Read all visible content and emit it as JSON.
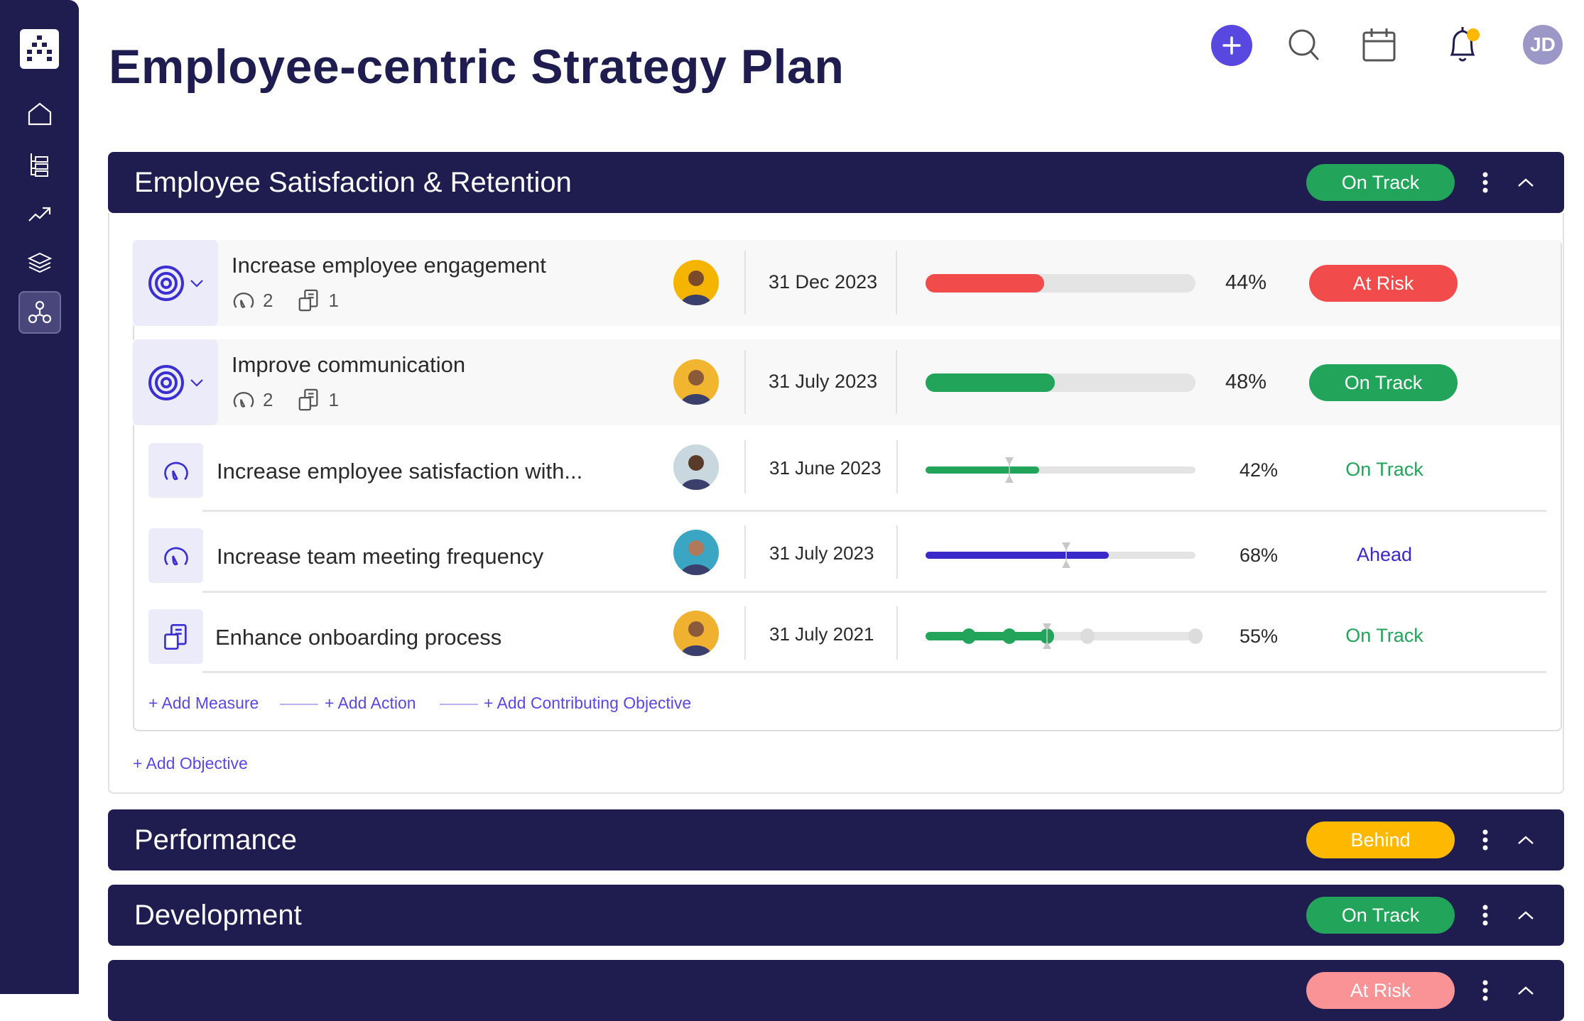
{
  "page": {
    "title": "Employee-centric Strategy Plan"
  },
  "sidebar": {
    "items": [
      {
        "icon": "home-icon"
      },
      {
        "icon": "hierarchy-list-icon"
      },
      {
        "icon": "trending-up-icon"
      },
      {
        "icon": "layers-icon"
      },
      {
        "icon": "network-icon",
        "active": true
      }
    ]
  },
  "topbar": {
    "avatar_initials": "JD",
    "notification_dot": true
  },
  "colors": {
    "navy": "#1f1c4f",
    "green": "#22a55a",
    "red": "#f24b4b",
    "amber": "#ffb800",
    "pink": "#f99396",
    "accent": "#5b46e6",
    "ahead": "#3a28c8"
  },
  "sections": [
    {
      "title": "Employee Satisfaction & Retention",
      "status": "On Track",
      "objectives": [
        {
          "title": "Increase employee engagement",
          "measures": "2",
          "actions": "1",
          "date": "31 Dec 2023",
          "progress": 44,
          "progress_label": "44%",
          "status": "At Risk"
        },
        {
          "title": "Improve communication",
          "measures": "2",
          "actions": "1",
          "date": "31 July 2023",
          "progress": 48,
          "progress_label": "48%",
          "status": "On Track"
        }
      ],
      "sub_items": [
        {
          "type": "measure",
          "title": "Increase employee satisfaction with...",
          "date": "31 June 2023",
          "progress": 42,
          "progress_label": "42%",
          "status": "On Track"
        },
        {
          "type": "measure",
          "title": "Increase team meeting frequency",
          "date": "31 July 2023",
          "progress": 68,
          "progress_label": "68%",
          "status": "Ahead"
        },
        {
          "type": "action",
          "title": "Enhance onboarding process",
          "date": "31 July 2021",
          "progress": 55,
          "progress_label": "55%",
          "status": "On Track",
          "milestones_total": 5,
          "milestones_done": 3
        }
      ],
      "links": {
        "add_measure": "+ Add Measure",
        "add_action": "+ Add Action",
        "add_contributing": "+ Add Contributing Objective",
        "add_objective": "+ Add Objective"
      }
    },
    {
      "title": "Performance",
      "status": "Behind"
    },
    {
      "title": "Development",
      "status": "On Track"
    },
    {
      "title": "",
      "status": "At Risk"
    }
  ]
}
